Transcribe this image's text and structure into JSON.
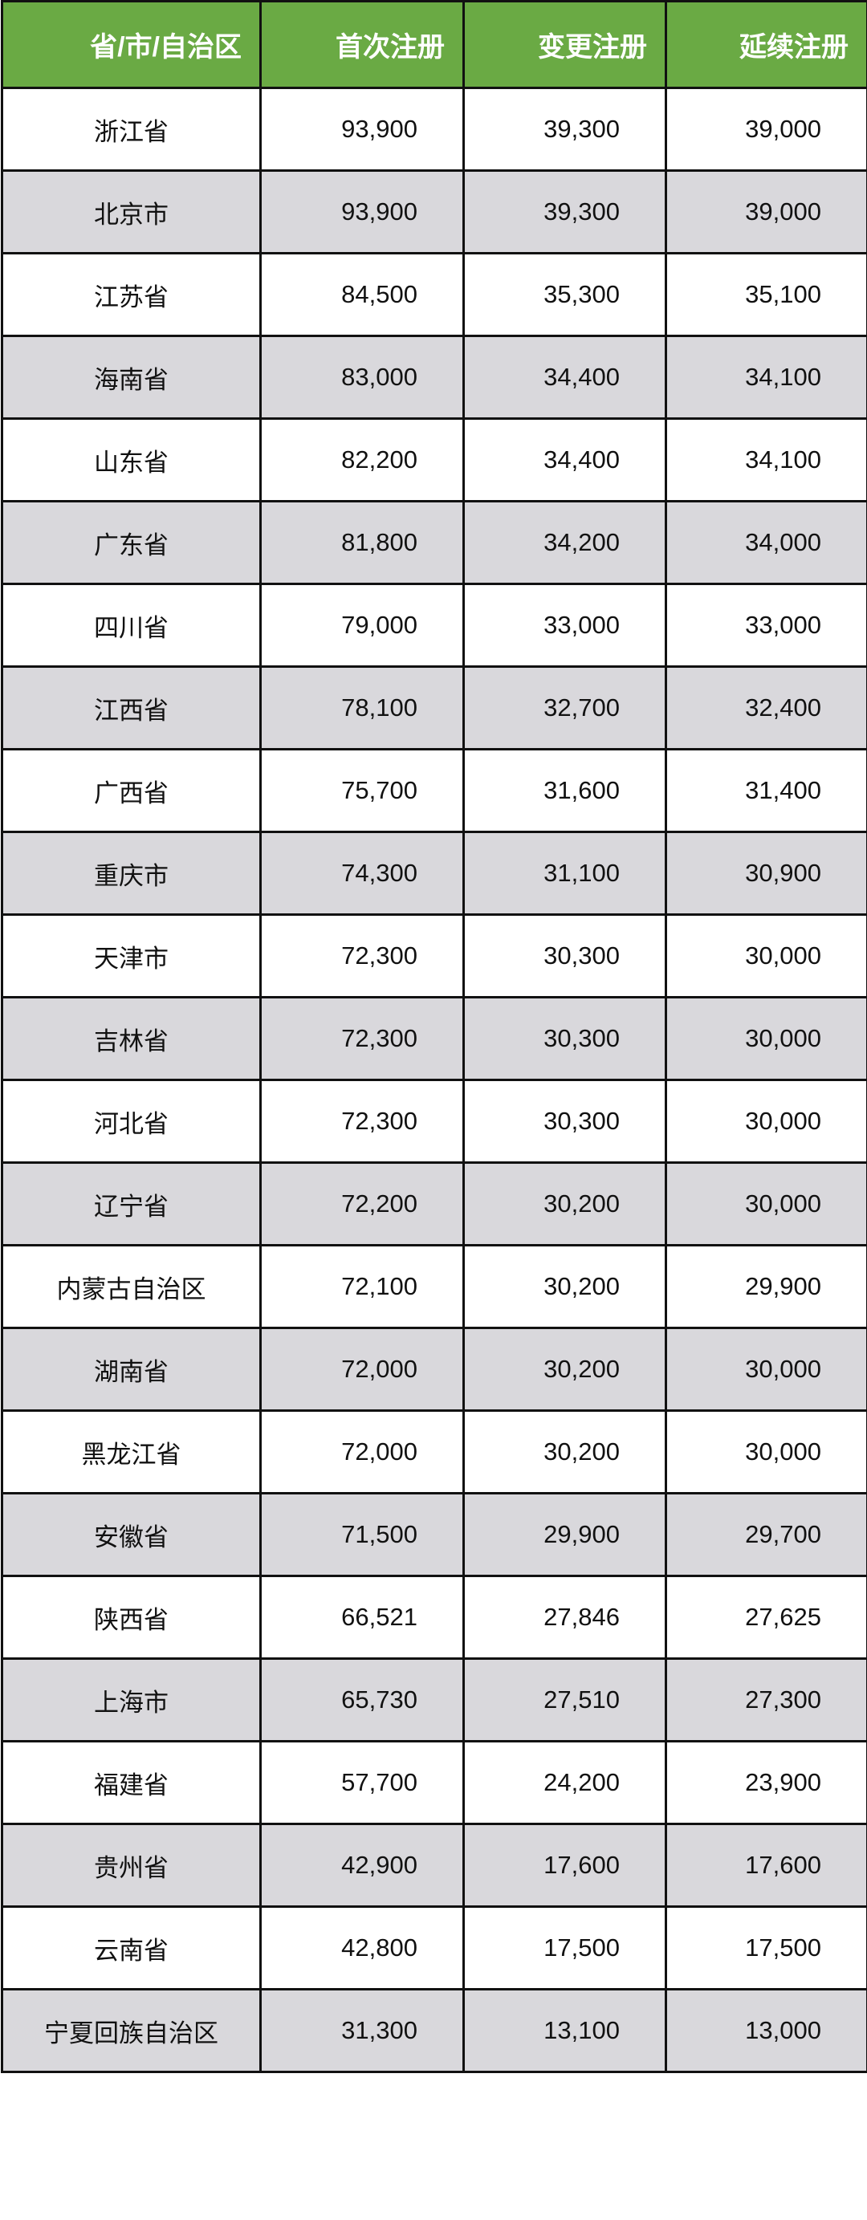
{
  "colors": {
    "header_bg": "#6aaa44",
    "header_text": "#ffffff",
    "alt_row_bg": "#d9d8dc",
    "border": "#111111"
  },
  "table": {
    "headers": [
      "省/市/自治区",
      "首次注册",
      "变更注册",
      "延续注册"
    ],
    "rows": [
      [
        "浙江省",
        "93,900",
        "39,300",
        "39,000"
      ],
      [
        "北京市",
        "93,900",
        "39,300",
        "39,000"
      ],
      [
        "江苏省",
        "84,500",
        "35,300",
        "35,100"
      ],
      [
        "海南省",
        "83,000",
        "34,400",
        "34,100"
      ],
      [
        "山东省",
        "82,200",
        "34,400",
        "34,100"
      ],
      [
        "广东省",
        "81,800",
        "34,200",
        "34,000"
      ],
      [
        "四川省",
        "79,000",
        "33,000",
        "33,000"
      ],
      [
        "江西省",
        "78,100",
        "32,700",
        "32,400"
      ],
      [
        "广西省",
        "75,700",
        "31,600",
        "31,400"
      ],
      [
        "重庆市",
        "74,300",
        "31,100",
        "30,900"
      ],
      [
        "天津市",
        "72,300",
        "30,300",
        "30,000"
      ],
      [
        "吉林省",
        "72,300",
        "30,300",
        "30,000"
      ],
      [
        "河北省",
        "72,300",
        "30,300",
        "30,000"
      ],
      [
        "辽宁省",
        "72,200",
        "30,200",
        "30,000"
      ],
      [
        "内蒙古自治区",
        "72,100",
        "30,200",
        "29,900"
      ],
      [
        "湖南省",
        "72,000",
        "30,200",
        "30,000"
      ],
      [
        "黑龙江省",
        "72,000",
        "30,200",
        "30,000"
      ],
      [
        "安徽省",
        "71,500",
        "29,900",
        "29,700"
      ],
      [
        "陕西省",
        "66,521",
        "27,846",
        "27,625"
      ],
      [
        "上海市",
        "65,730",
        "27,510",
        "27,300"
      ],
      [
        "福建省",
        "57,700",
        "24,200",
        "23,900"
      ],
      [
        "贵州省",
        "42,900",
        "17,600",
        "17,600"
      ],
      [
        "云南省",
        "42,800",
        "17,500",
        "17,500"
      ],
      [
        "宁夏回族自治区",
        "31,300",
        "13,100",
        "13,000"
      ]
    ]
  }
}
